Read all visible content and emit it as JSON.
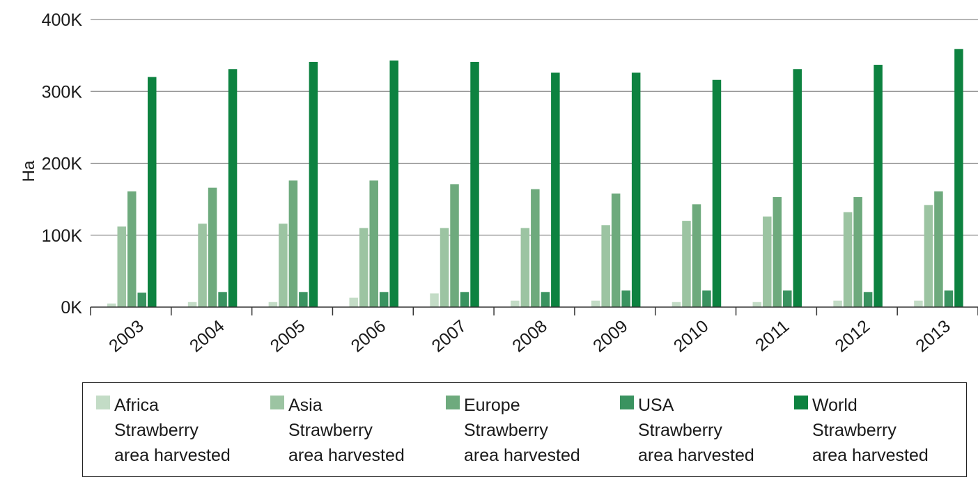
{
  "chart_data": {
    "type": "bar",
    "ylabel": "Ha",
    "xlabel": "",
    "ylim": [
      0,
      400000
    ],
    "y_ticks": [
      {
        "value": 0,
        "label": "0K"
      },
      {
        "value": 100000,
        "label": "100K"
      },
      {
        "value": 200000,
        "label": "200K"
      },
      {
        "value": 300000,
        "label": "300K"
      },
      {
        "value": 400000,
        "label": "400K"
      }
    ],
    "grid": "horizontal",
    "legend_position": "bottom",
    "categories": [
      "2003",
      "2004",
      "2005",
      "2006",
      "2007",
      "2008",
      "2009",
      "2010",
      "2011",
      "2012",
      "2013"
    ],
    "series": [
      {
        "name": "Africa Strawberry area harvested",
        "color": "#c3dcc6",
        "values": [
          5000,
          7000,
          7000,
          13000,
          19000,
          9000,
          9000,
          7000,
          7000,
          9000,
          9000
        ]
      },
      {
        "name": "Asia Strawberry area harvested",
        "color": "#9cc4a2",
        "values": [
          112000,
          116000,
          116000,
          110000,
          110000,
          110000,
          114000,
          120000,
          126000,
          132000,
          142000
        ]
      },
      {
        "name": "Europe Strawberry area harvested",
        "color": "#6eaa7d",
        "values": [
          161000,
          166000,
          176000,
          176000,
          171000,
          164000,
          158000,
          143000,
          153000,
          153000,
          161000
        ]
      },
      {
        "name": "USA Strawberry area harvested",
        "color": "#3a9360",
        "values": [
          20000,
          21000,
          21000,
          21000,
          21000,
          21000,
          23000,
          23000,
          23000,
          21000,
          23000
        ]
      },
      {
        "name": "World Strawberry area harvested",
        "color": "#0d8240",
        "values": [
          320000,
          331000,
          341000,
          343000,
          341000,
          326000,
          326000,
          316000,
          331000,
          337000,
          359000
        ]
      }
    ]
  },
  "legend": [
    {
      "line1": "Africa",
      "line2": "Strawberry",
      "line3": "area harvested",
      "color": "#c3dcc6"
    },
    {
      "line1": "Asia",
      "line2": "Strawberry",
      "line3": "area harvested",
      "color": "#9cc4a2"
    },
    {
      "line1": "Europe",
      "line2": "Strawberry",
      "line3": "area harvested",
      "color": "#6eaa7d"
    },
    {
      "line1": "USA",
      "line2": "Strawberry",
      "line3": "area harvested",
      "color": "#3a9360"
    },
    {
      "line1": "World",
      "line2": "Strawberry",
      "line3": "area harvested",
      "color": "#0d8240"
    }
  ]
}
